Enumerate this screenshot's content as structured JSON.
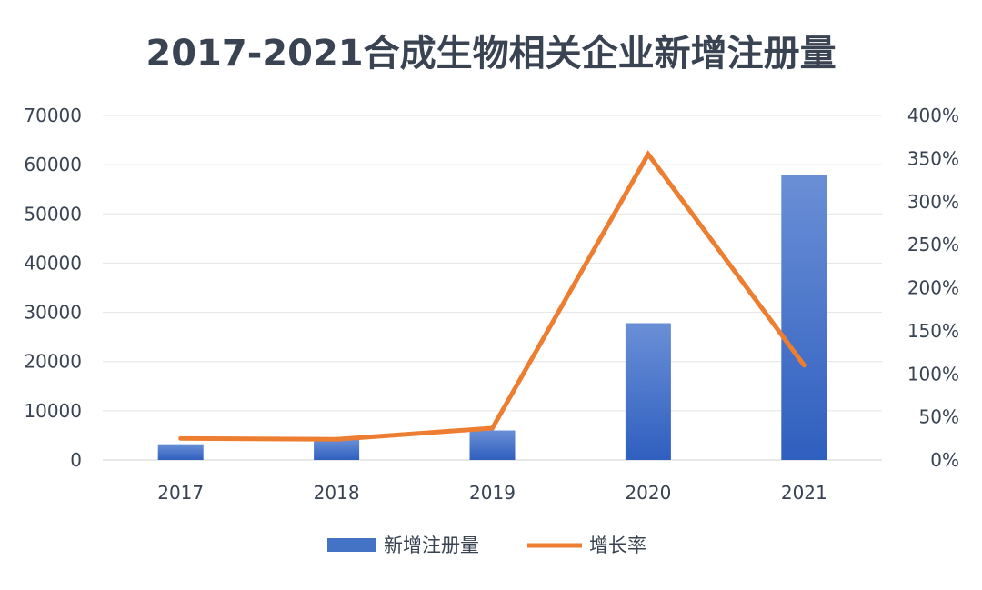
{
  "chart_data": {
    "type": "bar+line",
    "title": "2017-2021合成生物相关企业新增注册量",
    "categories": [
      "2017",
      "2018",
      "2019",
      "2020",
      "2021"
    ],
    "series": [
      {
        "name": "新增注册量",
        "type": "bar",
        "axis": "left",
        "color": "#4472c4",
        "values": [
          3200,
          4200,
          6000,
          27800,
          58000
        ]
      },
      {
        "name": "增长率",
        "type": "line",
        "axis": "right",
        "color": "#ed7d31",
        "values": [
          25,
          24,
          37,
          355,
          110
        ],
        "unit": "%"
      }
    ],
    "y_left": {
      "ylim": [
        0,
        70000
      ],
      "ticks": [
        "0",
        "10000",
        "20000",
        "30000",
        "40000",
        "50000",
        "60000",
        "70000"
      ]
    },
    "y_right": {
      "ylim": [
        0,
        400
      ],
      "ticks": [
        "0%",
        "50%",
        "100%",
        "150%",
        "200%",
        "250%",
        "300%",
        "350%",
        "400%"
      ]
    },
    "grid": true,
    "legend_position": "bottom"
  }
}
